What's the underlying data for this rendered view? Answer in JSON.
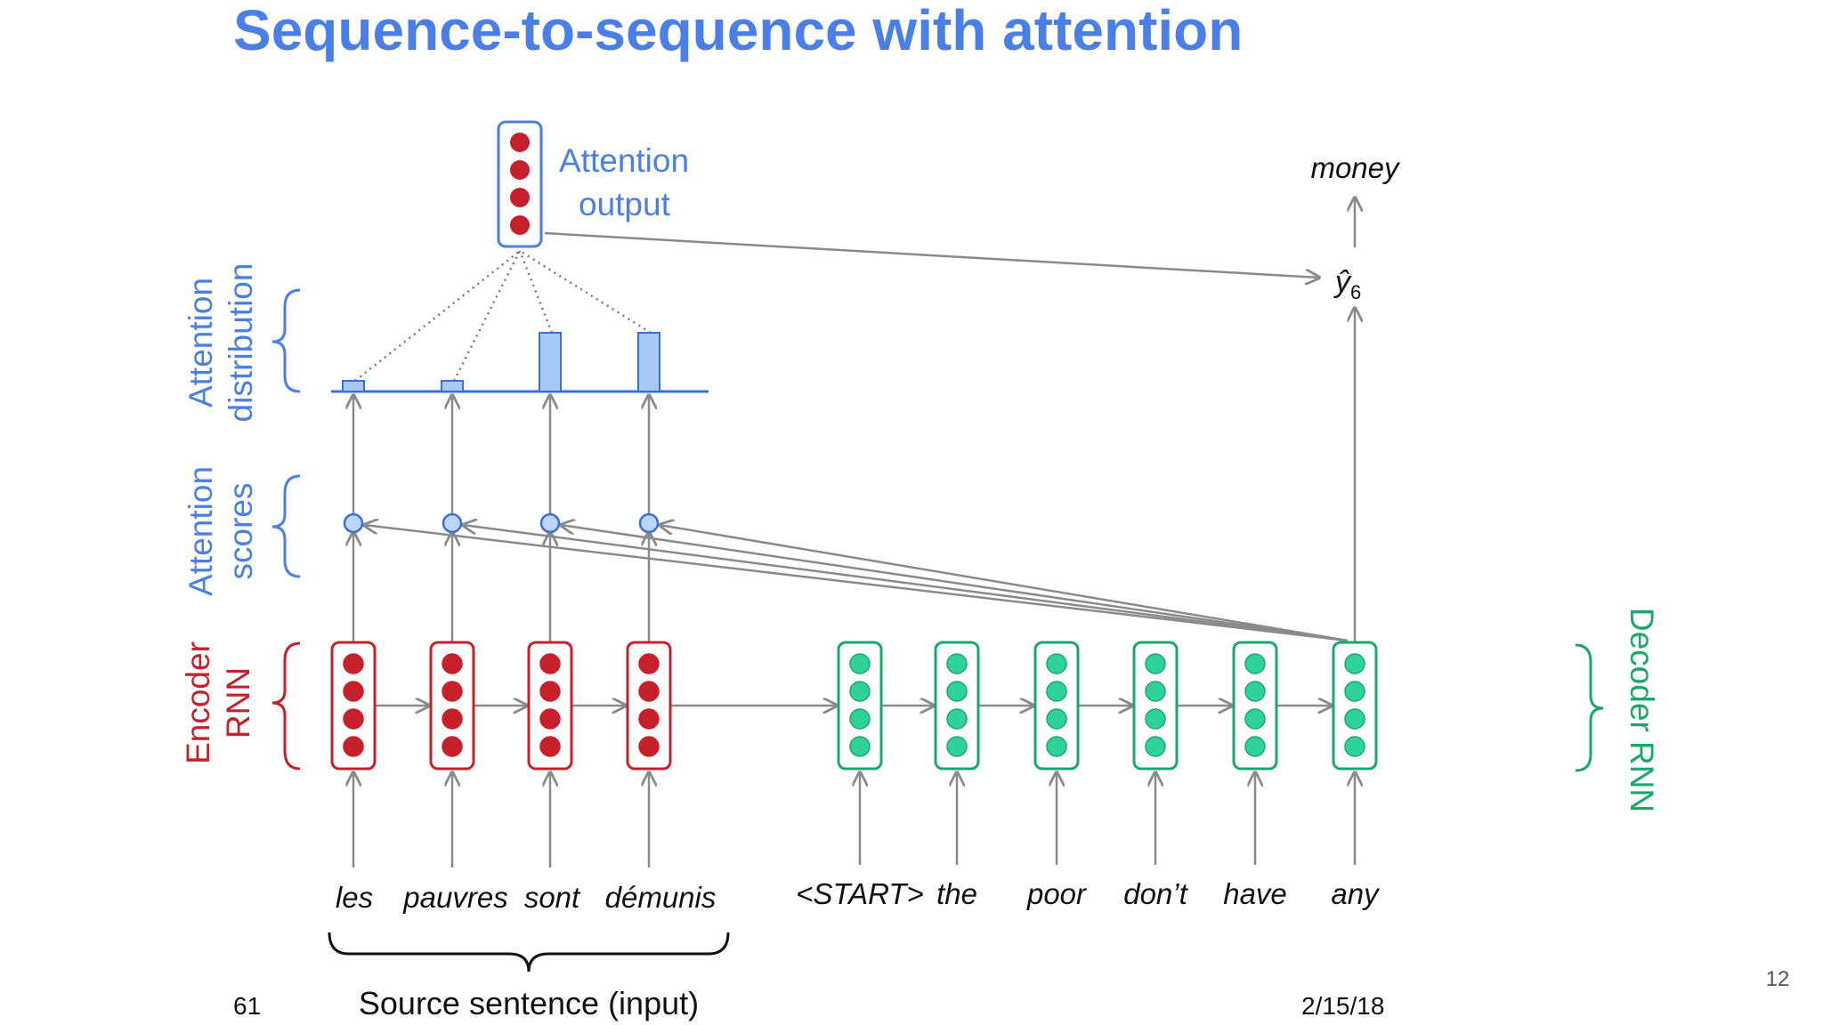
{
  "slide": {
    "title": "Sequence-to-sequence with attention",
    "slide_number": "61",
    "date": "2/15/18",
    "page_corner_number": "12"
  },
  "labels": {
    "attention_output": [
      "Attention",
      "output"
    ],
    "attention_distribution": [
      "Attention",
      "distribution"
    ],
    "attention_scores": [
      "Attention",
      "scores"
    ],
    "encoder_rnn": [
      "Encoder",
      "RNN"
    ],
    "decoder_rnn": "Decoder RNN",
    "source_sentence": "Source sentence (input)",
    "output_word": "money",
    "prediction": "ŷ",
    "prediction_subscript": "6"
  },
  "encoder_words": [
    "les",
    "pauvres",
    "sont",
    "démunis"
  ],
  "decoder_words": [
    "<START>",
    "the",
    "poor",
    "don’t",
    "have",
    "any"
  ],
  "attention_weights": [
    0.1,
    0.1,
    0.55,
    0.55
  ],
  "colors": {
    "title_blue": "#4a7fe8",
    "label_blue": "#4a7fe8",
    "encoder_red": "#c8202a",
    "decoder_green": "#1aa86a",
    "decoder_fill": "#2fd39a",
    "arrow_gray": "#8a8a8a",
    "bar_fill": "#a8c8f8",
    "bar_stroke": "#3a6fd8"
  }
}
